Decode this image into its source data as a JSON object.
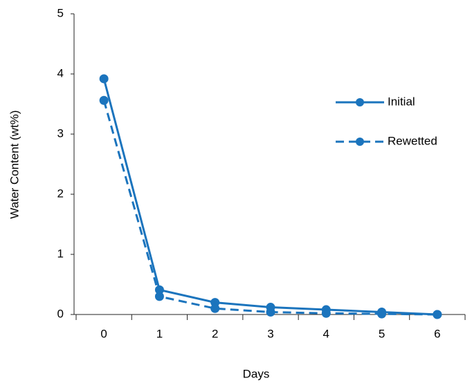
{
  "chart_data": {
    "type": "line",
    "x_label": "Days",
    "y_label": "Water Content (wt%)",
    "x": [
      0,
      1,
      2,
      3,
      4,
      5,
      6
    ],
    "series": [
      {
        "name": "Initial",
        "color": "#1b74bd",
        "line_style": "solid",
        "values": [
          3.92,
          0.41,
          0.2,
          0.12,
          0.08,
          0.04,
          0.0
        ]
      },
      {
        "name": "Rewetted",
        "color": "#1b74bd",
        "line_style": "dashed",
        "values": [
          3.56,
          0.3,
          0.1,
          0.04,
          0.02,
          0.01,
          0.0
        ]
      }
    ],
    "xlim": [
      -0.5,
      6.5
    ],
    "xticks": [
      0,
      1,
      2,
      3,
      4,
      5,
      6
    ],
    "ylim": [
      0,
      5
    ],
    "yticks": [
      0,
      1,
      2,
      3,
      4,
      5
    ],
    "grid": false,
    "legend": "right"
  }
}
